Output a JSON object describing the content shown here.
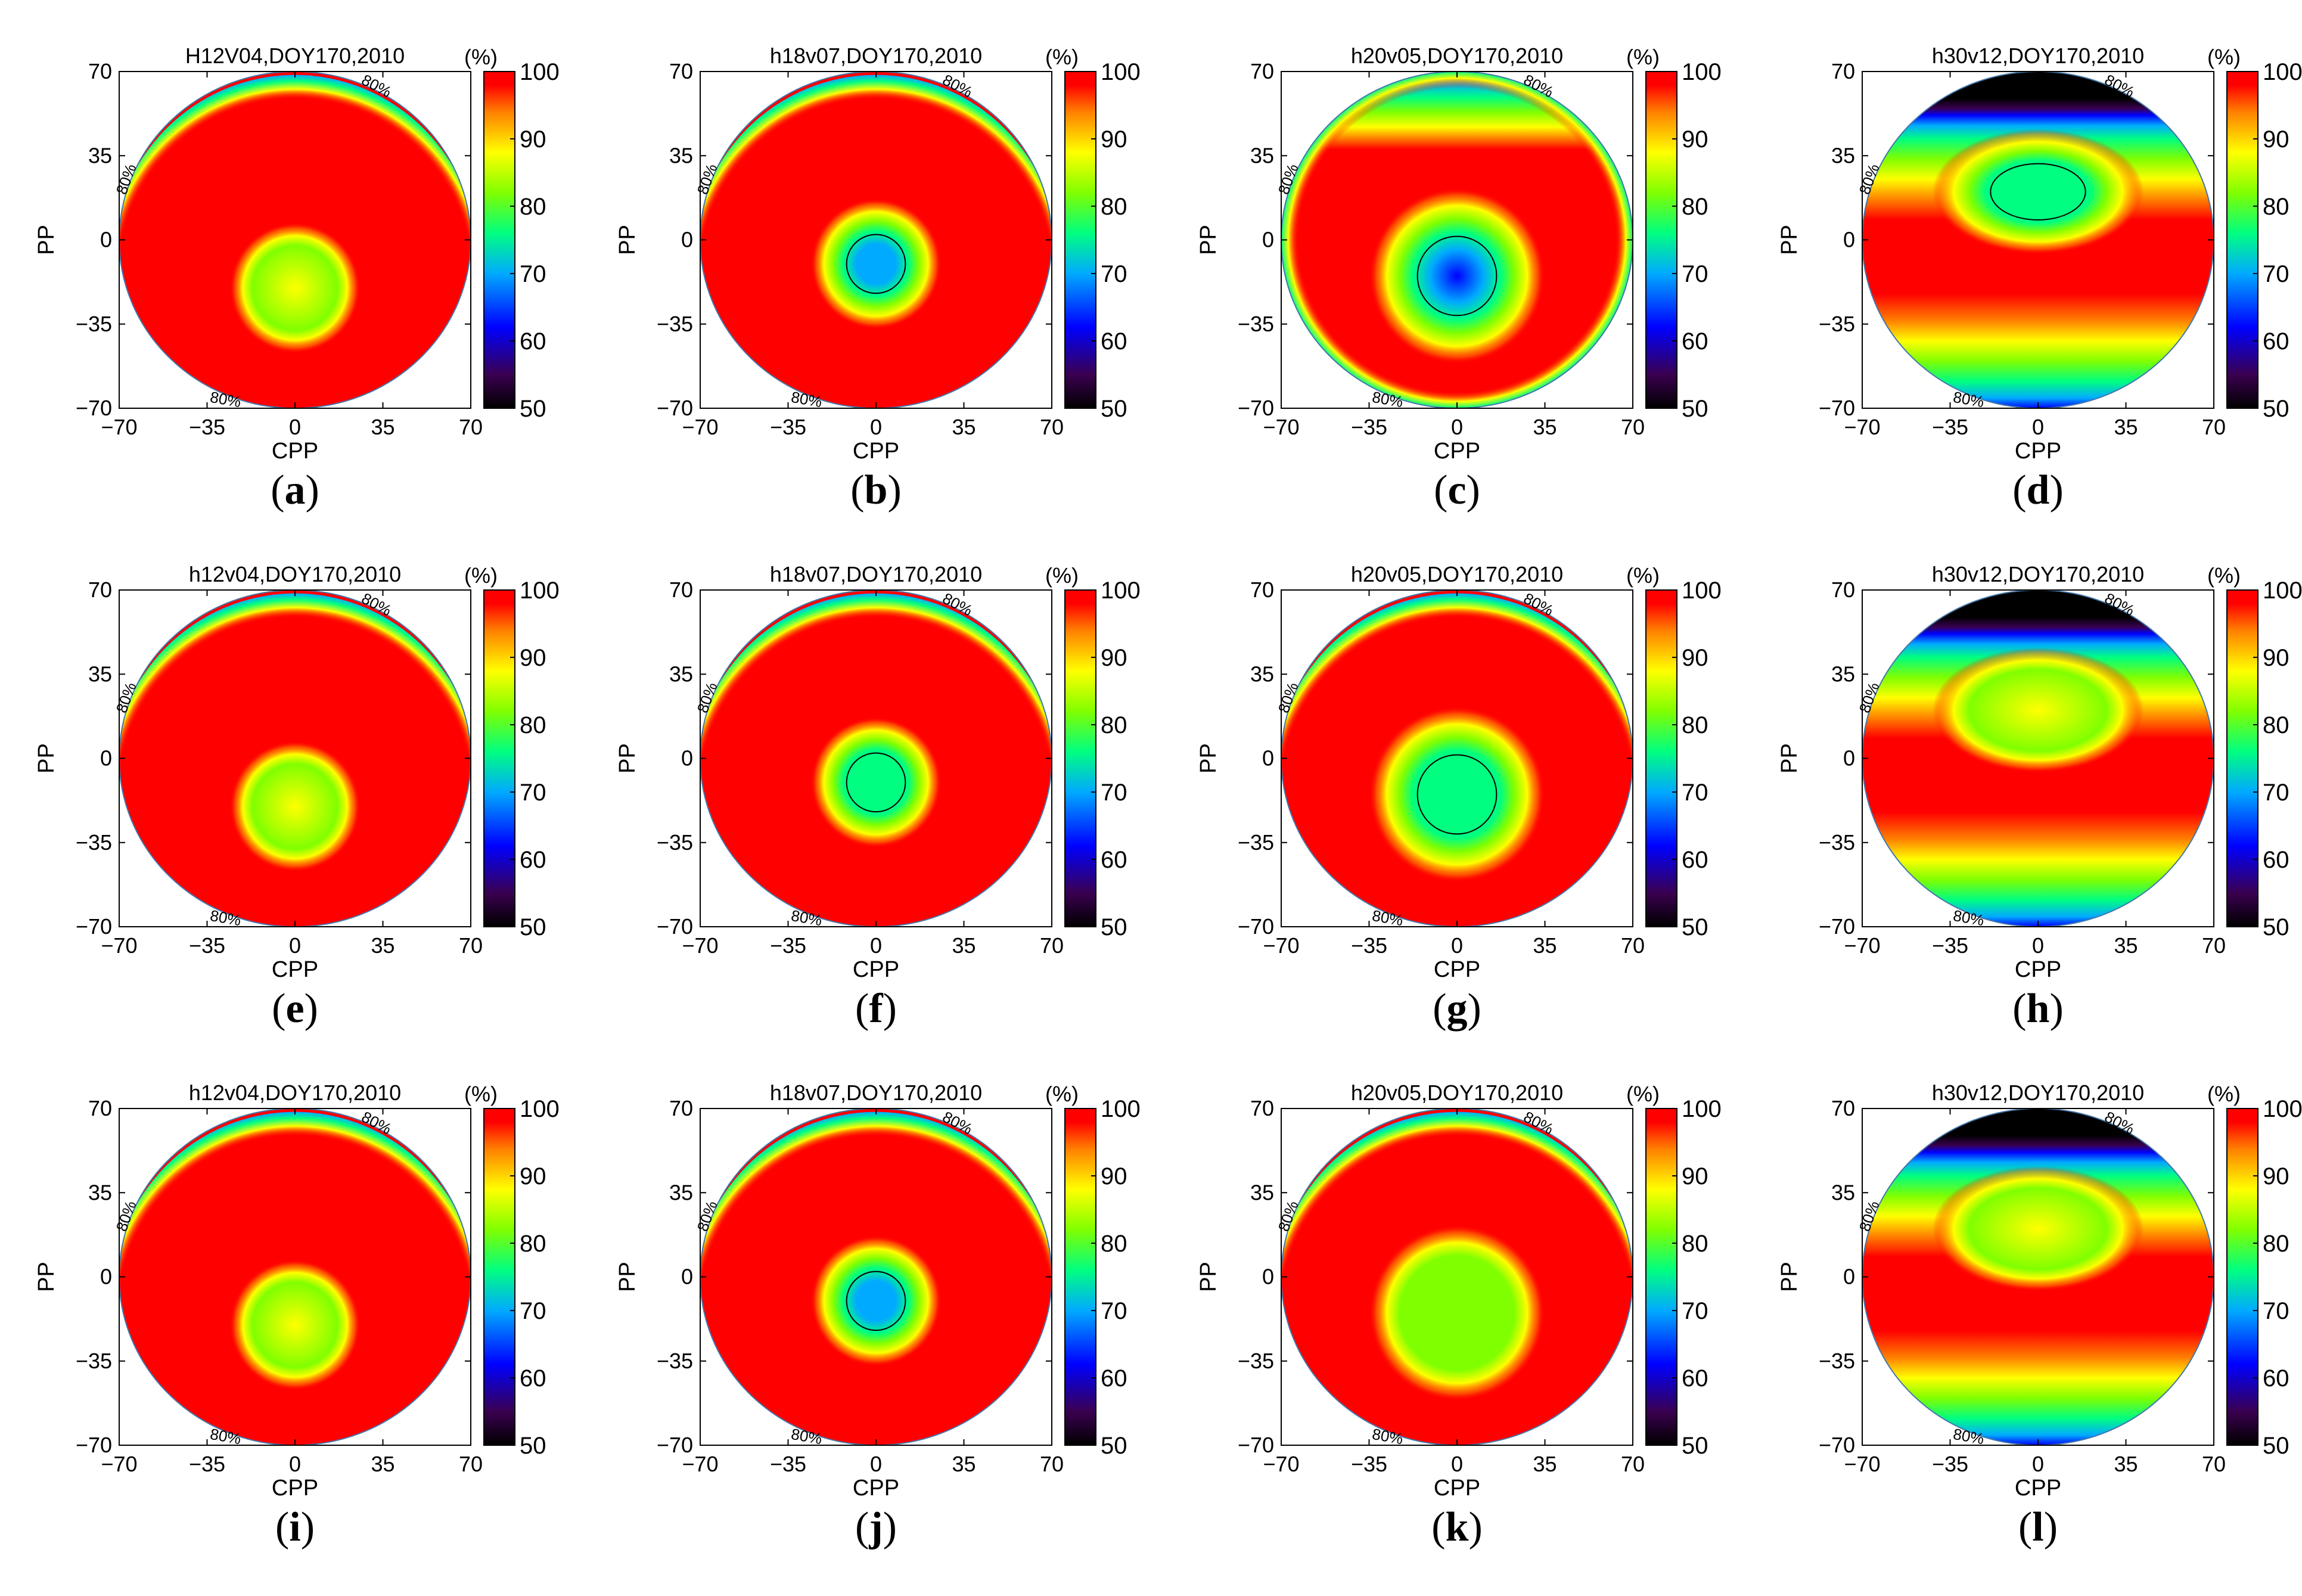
{
  "figure_label": "Polar contour grid of percentage coverage over CPP/PP",
  "colorbar": {
    "unit": "(%)",
    "ticks": [
      100,
      90,
      80,
      70,
      60,
      50
    ],
    "colors": [
      "#000000",
      "#3a0050",
      "#0000ff",
      "#00aaff",
      "#00ff80",
      "#80ff00",
      "#ffff00",
      "#ff8000",
      "#ff0000"
    ]
  },
  "axes": {
    "xlabel": "CPP",
    "ylabel": "PP",
    "xticks": [
      "-70",
      "-35",
      "0",
      "35",
      "70"
    ],
    "yticks": [
      "70",
      "35",
      "0",
      "-35",
      "-70"
    ]
  },
  "chart_data": [
    {
      "type": "heatmap",
      "panel": "a",
      "title": "H12V04,DOY170,2010",
      "xlabel": "CPP",
      "ylabel": "PP",
      "xlim": [
        -70,
        70
      ],
      "ylim": [
        -70,
        70
      ],
      "zlim": [
        50,
        100
      ],
      "contour_label": "80%",
      "center_min": {
        "cpp": 0,
        "pp": -20,
        "value": 88
      },
      "edge": "top-rim"
    },
    {
      "type": "heatmap",
      "panel": "b",
      "title": "h18v07,DOY170,2010",
      "xlabel": "CPP",
      "ylabel": "PP",
      "xlim": [
        -70,
        70
      ],
      "ylim": [
        -70,
        70
      ],
      "zlim": [
        50,
        100
      ],
      "contour_label": "80%",
      "center_min": {
        "cpp": 0,
        "pp": -10,
        "value": 68
      },
      "edge": "rim"
    },
    {
      "type": "heatmap",
      "panel": "c",
      "title": "h20v05,DOY170,2010",
      "xlabel": "CPP",
      "ylabel": "PP",
      "xlim": [
        -70,
        70
      ],
      "ylim": [
        -70,
        70
      ],
      "zlim": [
        50,
        100
      ],
      "contour_label": "80%",
      "center_min": {
        "cpp": 0,
        "pp": -15,
        "value": 60
      },
      "edge": "top-band"
    },
    {
      "type": "heatmap",
      "panel": "d",
      "title": "h30v12,DOY170,2010",
      "xlabel": "CPP",
      "ylabel": "PP",
      "xlim": [
        -70,
        70
      ],
      "ylim": [
        -70,
        70
      ],
      "zlim": [
        50,
        100
      ],
      "contour_label": "80%",
      "center_min": {
        "cpp": 0,
        "pp": 20,
        "value": 75
      },
      "edge": "top-black-bottom-blue"
    },
    {
      "type": "heatmap",
      "panel": "e",
      "title": "h12v04,DOY170,2010",
      "xlabel": "CPP",
      "ylabel": "PP",
      "xlim": [
        -70,
        70
      ],
      "ylim": [
        -70,
        70
      ],
      "zlim": [
        50,
        100
      ],
      "contour_label": "80%",
      "center_min": {
        "cpp": 0,
        "pp": -20,
        "value": 88
      },
      "edge": "top-rim"
    },
    {
      "type": "heatmap",
      "panel": "f",
      "title": "h18v07,DOY170,2010",
      "xlabel": "CPP",
      "ylabel": "PP",
      "xlim": [
        -70,
        70
      ],
      "ylim": [
        -70,
        70
      ],
      "zlim": [
        50,
        100
      ],
      "contour_label": "80%",
      "center_min": {
        "cpp": 0,
        "pp": -10,
        "value": 76
      },
      "edge": "rim"
    },
    {
      "type": "heatmap",
      "panel": "g",
      "title": "h20v05,DOY170,2010",
      "xlabel": "CPP",
      "ylabel": "PP",
      "xlim": [
        -70,
        70
      ],
      "ylim": [
        -70,
        70
      ],
      "zlim": [
        50,
        100
      ],
      "contour_label": "80%",
      "center_min": {
        "cpp": 0,
        "pp": -15,
        "value": 74
      },
      "edge": "top-rim"
    },
    {
      "type": "heatmap",
      "panel": "h",
      "title": "h30v12,DOY170,2010",
      "xlabel": "CPP",
      "ylabel": "PP",
      "xlim": [
        -70,
        70
      ],
      "ylim": [
        -70,
        70
      ],
      "zlim": [
        50,
        100
      ],
      "contour_label": "80%",
      "center_min": {
        "cpp": 0,
        "pp": 20,
        "value": 86
      },
      "edge": "top-black-bottom-blue"
    },
    {
      "type": "heatmap",
      "panel": "i",
      "title": "h12v04,DOY170,2010",
      "xlabel": "CPP",
      "ylabel": "PP",
      "xlim": [
        -70,
        70
      ],
      "ylim": [
        -70,
        70
      ],
      "zlim": [
        50,
        100
      ],
      "contour_label": "80%",
      "center_min": {
        "cpp": 0,
        "pp": -20,
        "value": 88
      },
      "edge": "top-rim"
    },
    {
      "type": "heatmap",
      "panel": "j",
      "title": "h18v07,DOY170,2010",
      "xlabel": "CPP",
      "ylabel": "PP",
      "xlim": [
        -70,
        70
      ],
      "ylim": [
        -70,
        70
      ],
      "zlim": [
        50,
        100
      ],
      "contour_label": "80%",
      "center_min": {
        "cpp": 0,
        "pp": -10,
        "value": 68
      },
      "edge": "rim"
    },
    {
      "type": "heatmap",
      "panel": "k",
      "title": "h20v05,DOY170,2010",
      "xlabel": "CPP",
      "ylabel": "PP",
      "xlim": [
        -70,
        70
      ],
      "ylim": [
        -70,
        70
      ],
      "zlim": [
        50,
        100
      ],
      "contour_label": "80%",
      "center_min": {
        "cpp": 0,
        "pp": -15,
        "value": 80
      },
      "edge": "top-rim"
    },
    {
      "type": "heatmap",
      "panel": "l",
      "title": "h30v12,DOY170,2010",
      "xlabel": "CPP",
      "ylabel": "PP",
      "xlim": [
        -70,
        70
      ],
      "ylim": [
        -70,
        70
      ],
      "zlim": [
        50,
        100
      ],
      "contour_label": "80%",
      "center_min": {
        "cpp": 0,
        "pp": 20,
        "value": 88
      },
      "edge": "top-black-bottom-blue"
    }
  ]
}
